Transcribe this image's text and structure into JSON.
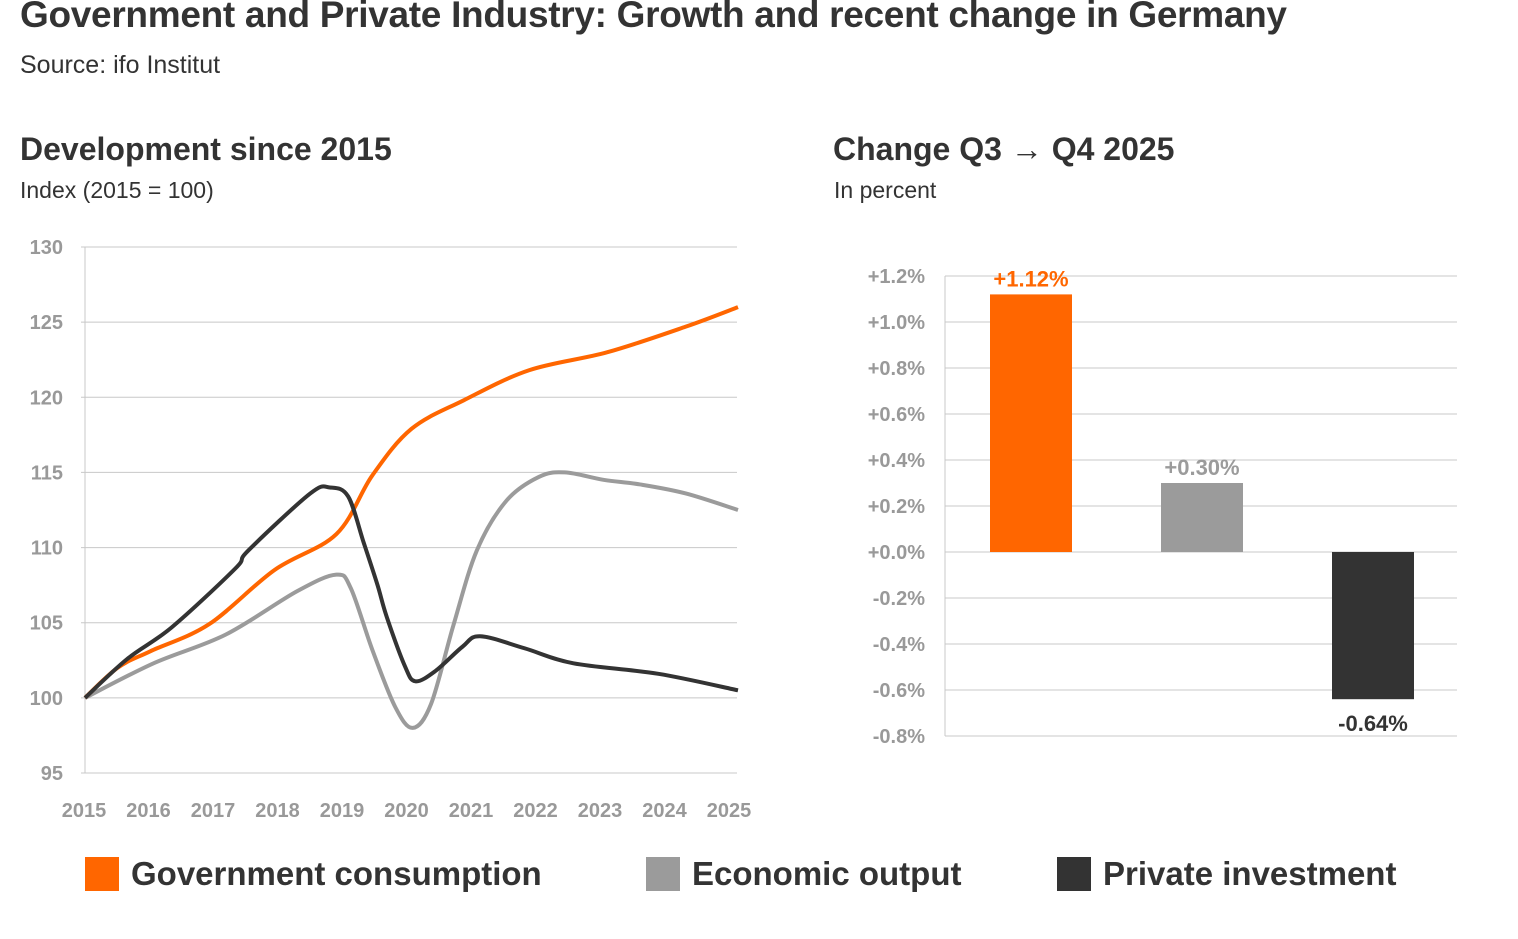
{
  "header": {
    "title": "Government and Private Industry: Growth and recent change in Germany",
    "source": "Source: ifo Institut"
  },
  "colors": {
    "government": "#ff6600",
    "economic": "#9b9b9b",
    "private": "#333333",
    "grid": "#c8c8c8",
    "axis_text": "#999999"
  },
  "legend": [
    {
      "label": "Government consumption",
      "color": "#ff6600"
    },
    {
      "label": "Economic output",
      "color": "#9b9b9b"
    },
    {
      "label": "Private investment",
      "color": "#333333"
    }
  ],
  "chart_data": [
    {
      "type": "line",
      "title": "Development since 2015",
      "subtitle": "Index (2015 = 100)",
      "xlim": [
        2015,
        2025
      ],
      "ylim": [
        95,
        130
      ],
      "yticks": [
        95,
        100,
        105,
        110,
        115,
        120,
        125,
        130
      ],
      "xticks": [
        2015,
        2016,
        2017,
        2018,
        2019,
        2020,
        2021,
        2022,
        2023,
        2024,
        2025
      ],
      "grid": true,
      "series": [
        {
          "name": "Government consumption",
          "color": "#ff6600",
          "x": [
            2015,
            2015.5,
            2016,
            2016.9,
            2017.9,
            2018.85,
            2019.4,
            2020.0,
            2020.8,
            2021.8,
            2023.0,
            2024.2,
            2025
          ],
          "y": [
            100,
            102.0,
            103.1,
            104.9,
            108.5,
            110.9,
            114.8,
            117.9,
            119.8,
            121.8,
            123.0,
            124.7,
            126.0
          ]
        },
        {
          "name": "Economic output",
          "color": "#9b9b9b",
          "x": [
            2015,
            2016.05,
            2017.15,
            2018.25,
            2018.85,
            2019.07,
            2019.4,
            2019.75,
            2020.02,
            2020.3,
            2020.64,
            2021.0,
            2021.45,
            2021.95,
            2022.35,
            2022.95,
            2023.5,
            2024.2,
            2025
          ],
          "y": [
            100,
            102.3,
            104.2,
            107.1,
            108.2,
            107.3,
            103.2,
            99.4,
            98.0,
            99.6,
            104.8,
            109.8,
            113.1,
            114.7,
            115.0,
            114.5,
            114.2,
            113.6,
            112.5
          ]
        },
        {
          "name": "Private investment",
          "color": "#333333",
          "x": [
            2015,
            2015.65,
            2016.33,
            2017.3,
            2017.5,
            2018.45,
            2018.75,
            2019.03,
            2019.27,
            2019.48,
            2019.62,
            2019.9,
            2020.06,
            2020.37,
            2020.78,
            2021.05,
            2021.73,
            2022.48,
            2023.78,
            2025
          ],
          "y": [
            100,
            102.6,
            104.7,
            108.6,
            109.8,
            113.6,
            114.0,
            113.4,
            110.3,
            107.5,
            105.4,
            102.1,
            101.1,
            101.8,
            103.4,
            104.1,
            103.3,
            102.3,
            101.6,
            100.5
          ]
        }
      ]
    },
    {
      "type": "bar",
      "title": "Change Q3 → Q4 2025",
      "subtitle": "In percent",
      "categories": [
        "Government consumption",
        "Economic output",
        "Private investment"
      ],
      "values": [
        1.12,
        0.3,
        -0.64
      ],
      "data_labels": [
        "+1.12%",
        "+0.30%",
        "-0.64%"
      ],
      "colors": [
        "#ff6600",
        "#9b9b9b",
        "#333333"
      ],
      "label_colors": [
        "#ff6600",
        "#9b9b9b",
        "#333333"
      ],
      "ylim": [
        -0.8,
        1.2
      ],
      "yticks": [
        -0.8,
        -0.6,
        -0.4,
        -0.2,
        0.0,
        0.2,
        0.4,
        0.6,
        0.8,
        1.0,
        1.2
      ],
      "ytick_labels": [
        "-0.8%",
        "-0.6%",
        "-0.4%",
        "-0.2%",
        "+0.0%",
        "+0.2%",
        "+0.4%",
        "+0.6%",
        "+0.8%",
        "+1.0%",
        "+1.2%"
      ],
      "grid": true
    }
  ]
}
